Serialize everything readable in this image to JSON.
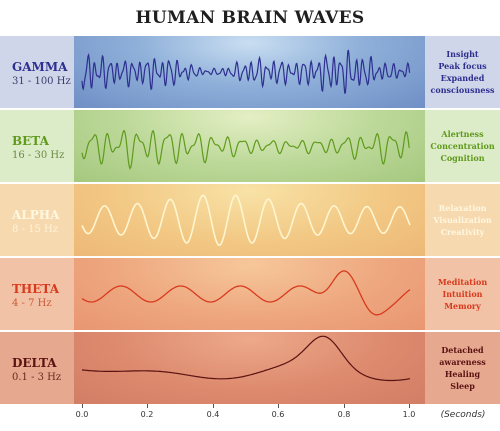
{
  "title": "HUMAN BRAIN WAVES",
  "axis": {
    "ticks": [
      "0.0",
      "0.2",
      "0.4",
      "0.6",
      "0.8",
      "1.0"
    ],
    "unit": "(Seconds)"
  },
  "colors": {
    "gamma": "#2e2f8f",
    "beta": "#5f9a1c",
    "alpha": "#fff5cf",
    "theta": "#d83a1e",
    "delta": "#5a1212"
  },
  "waves": [
    {
      "name": "GAMMA",
      "range": "31 - 100 Hz",
      "descriptions": [
        "Insight",
        "Peak focus",
        "Expanded",
        "consciousness"
      ]
    },
    {
      "name": "BETA",
      "range": "16 - 30 Hz",
      "descriptions": [
        "Alertness",
        "Concentration",
        "Cognition"
      ]
    },
    {
      "name": "ALPHA",
      "range": "8 - 15 Hz",
      "descriptions": [
        "Relaxation",
        "Visualization",
        "Creativity"
      ]
    },
    {
      "name": "THETA",
      "range": "4 - 7 Hz",
      "descriptions": [
        "Meditation",
        "Intuition",
        "Memory"
      ]
    },
    {
      "name": "DELTA",
      "range": "0.1 - 3 Hz",
      "descriptions": [
        "Detached",
        "awareness",
        "Healing",
        "Sleep"
      ]
    }
  ]
}
